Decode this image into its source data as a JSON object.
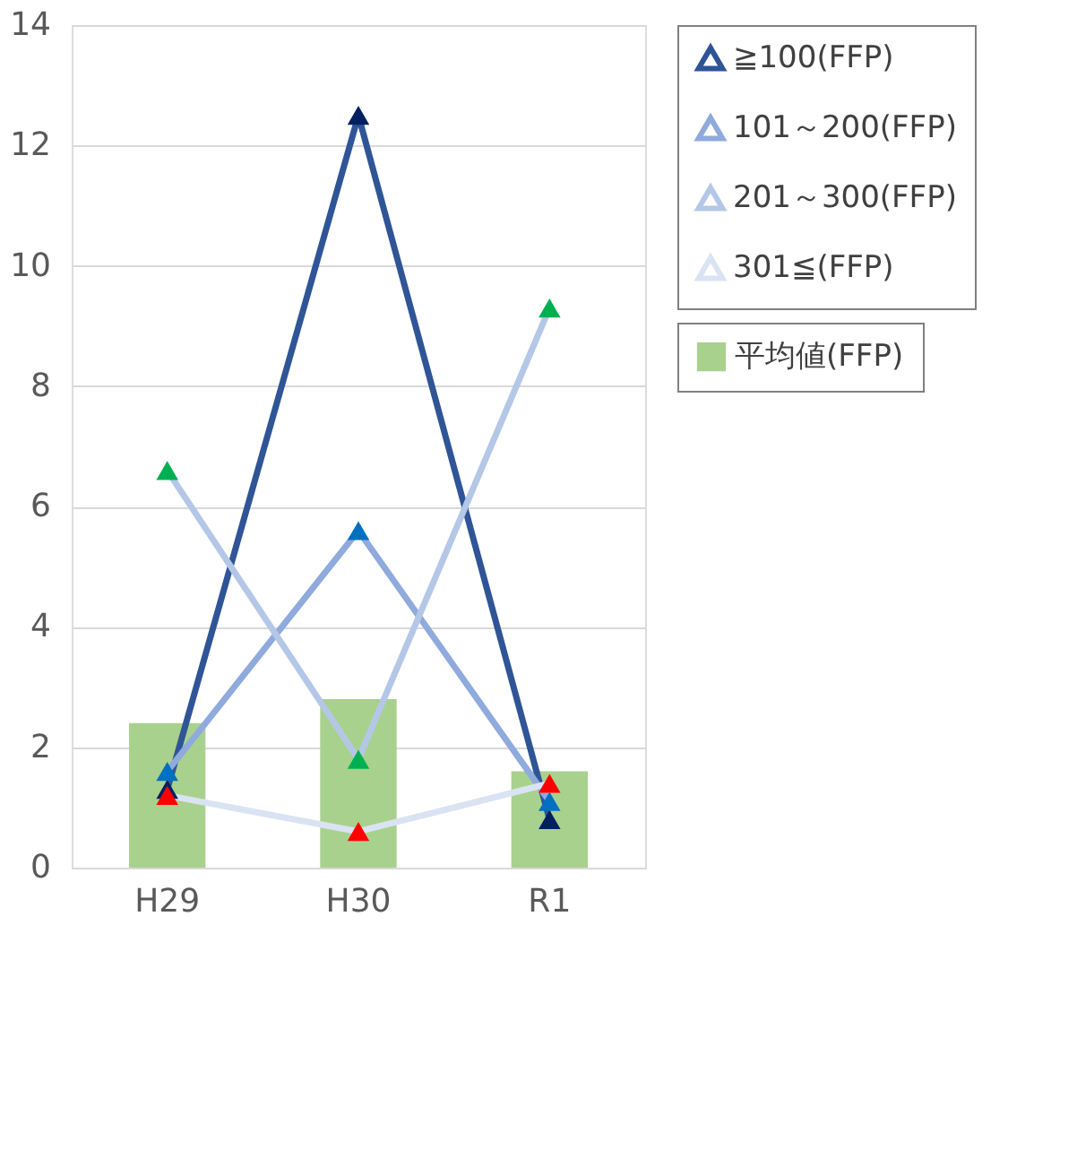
{
  "chart_data": {
    "type": "line",
    "categories": [
      "H29",
      "H30",
      "R1"
    ],
    "ylim": [
      0,
      14
    ],
    "yticks": [
      0,
      2,
      4,
      6,
      8,
      10,
      12,
      14
    ],
    "grid": "y",
    "legend": "top right",
    "marker": "triangle",
    "line_style": "solid",
    "series": [
      {
        "name": "平均値(FFP)",
        "type": "bar",
        "color": "#a9d18e",
        "values": [
          2.4,
          2.8,
          1.6
        ]
      },
      {
        "name": "≧100(FFP)",
        "color": "#2f5597",
        "colors": [
          "#002060",
          "#002060",
          "#002060"
        ],
        "values": [
          1.3,
          12.5,
          0.8
        ]
      },
      {
        "name": "101～200(FFP)",
        "color": "#8faadc",
        "colors": [
          "#0070c0",
          "#0070c0",
          "#0070c0"
        ],
        "values": [
          1.6,
          5.6,
          1.1
        ]
      },
      {
        "name": "201～300(FFP)",
        "color": "#b4c7e7",
        "colors": [
          "#00b050",
          "#00b050",
          "#00b050"
        ],
        "values": [
          6.6,
          1.8,
          9.3
        ]
      },
      {
        "name": "301≦(FFP)",
        "color": "#dae3f3",
        "colors": [
          "#ff0000",
          "#ff0000",
          "#ff0000"
        ],
        "values": [
          1.2,
          0.6,
          1.4
        ]
      }
    ]
  }
}
